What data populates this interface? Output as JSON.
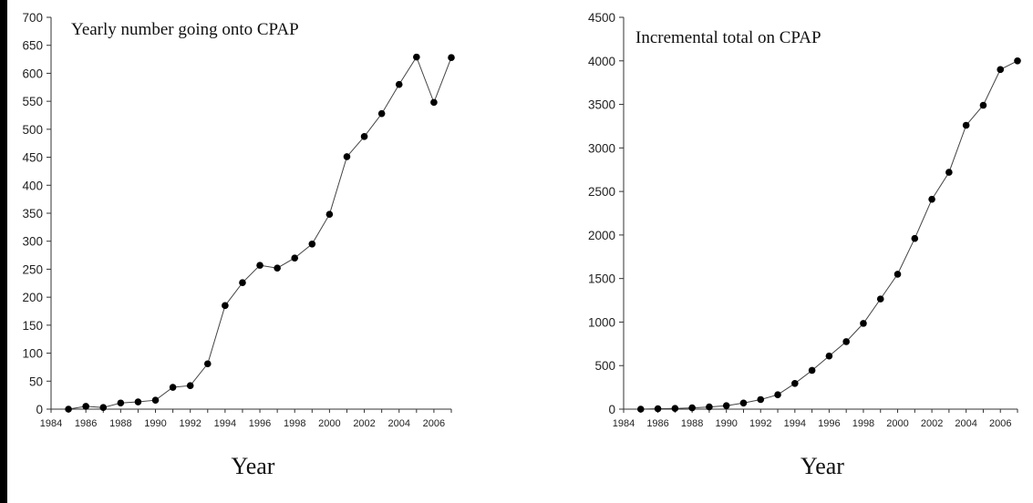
{
  "chart_data": [
    {
      "type": "line",
      "title": "Yearly number going onto CPAP",
      "xlabel": "Year",
      "ylabel": "",
      "xlim": [
        1984,
        2007
      ],
      "ylim": [
        0,
        700
      ],
      "yticks": [
        0,
        50,
        100,
        150,
        200,
        250,
        300,
        350,
        400,
        450,
        500,
        550,
        600,
        650,
        700
      ],
      "xticks": [
        1984,
        1986,
        1988,
        1990,
        1992,
        1994,
        1996,
        1998,
        2000,
        2002,
        2004,
        2006
      ],
      "grid": false,
      "x": [
        1985,
        1986,
        1987,
        1988,
        1989,
        1990,
        1991,
        1992,
        1993,
        1994,
        1995,
        1996,
        1997,
        1998,
        1999,
        2000,
        2001,
        2002,
        2003,
        2004,
        2005,
        2006,
        2007
      ],
      "values": [
        0,
        5,
        3,
        11,
        13,
        16,
        39,
        42,
        81,
        185,
        226,
        257,
        252,
        270,
        295,
        348,
        451,
        487,
        528,
        580,
        629,
        548,
        628
      ]
    },
    {
      "type": "line",
      "title": "Incremental total on CPAP",
      "xlabel": "Year",
      "ylabel": "",
      "xlim": [
        1984,
        2007
      ],
      "ylim": [
        0,
        4500
      ],
      "yticks": [
        0,
        500,
        1000,
        1500,
        2000,
        2500,
        3000,
        3500,
        4000,
        4500
      ],
      "xticks": [
        1984,
        1986,
        1988,
        1990,
        1992,
        1994,
        1996,
        1998,
        2000,
        2002,
        2004,
        2006
      ],
      "grid": false,
      "x": [
        1985,
        1986,
        1987,
        1988,
        1989,
        1990,
        1991,
        1992,
        1993,
        1994,
        1995,
        1996,
        1997,
        1998,
        1999,
        2000,
        2001,
        2002,
        2003,
        2004,
        2005,
        2006,
        2007
      ],
      "values": [
        0,
        5,
        8,
        15,
        25,
        40,
        70,
        110,
        165,
        295,
        445,
        610,
        775,
        985,
        1265,
        1550,
        1960,
        2410,
        2720,
        3260,
        3490,
        3900,
        4000
      ]
    }
  ]
}
